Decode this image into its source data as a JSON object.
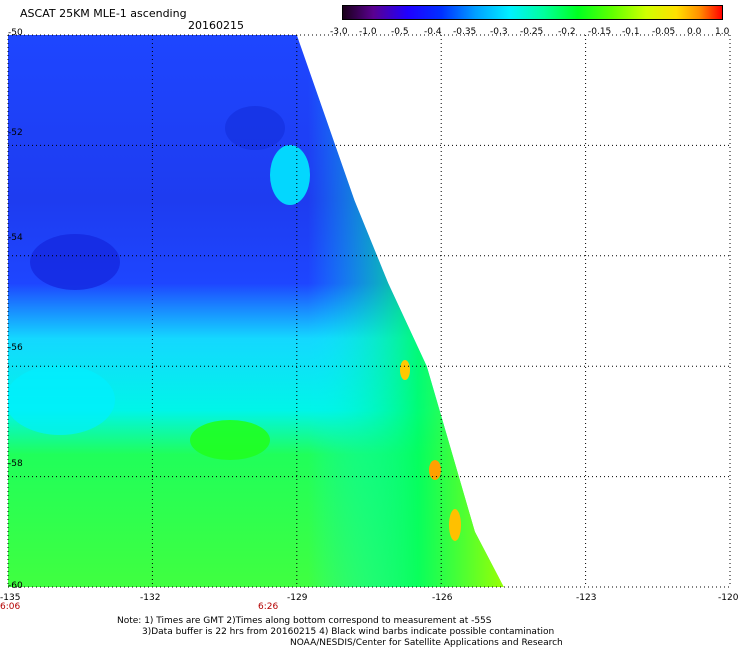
{
  "header": {
    "title": "ASCAT 25KM MLE-1 ascending",
    "date": "20160215"
  },
  "colorbar": {
    "labels": [
      "-3.0",
      "-1.0",
      "-0.5",
      "-0.4",
      "-0.35",
      "-0.3",
      "-0.25",
      "-0.2",
      "-0.15",
      "-0.1",
      "-0.05",
      "0.0",
      "1.0"
    ],
    "colors": [
      "#1a001a",
      "#6a00b0",
      "#0000ff",
      "#0050ff",
      "#00a0ff",
      "#00e8ff",
      "#00ff9c",
      "#00ff00",
      "#8cff00",
      "#e0ff00",
      "#ffe000",
      "#ff8c00",
      "#ff0000"
    ]
  },
  "axes": {
    "lat_labels": [
      "-50",
      "-52",
      "-54",
      "-56",
      "-58",
      "-60"
    ],
    "lon_labels": [
      "-135",
      "-132",
      "-129",
      "-126",
      "-123",
      "-120"
    ],
    "time_labels": [
      "6:06",
      "6:26"
    ]
  },
  "map": {
    "lon_range": [
      -135,
      -120
    ],
    "lat_range": [
      -60,
      -50
    ],
    "swath_east_edge": [
      {
        "lat": -50.0,
        "lon": -129.0
      },
      {
        "lat": -51.5,
        "lon": -128.4
      },
      {
        "lat": -53.0,
        "lon": -127.8
      },
      {
        "lat": -54.5,
        "lon": -127.1
      },
      {
        "lat": -56.0,
        "lon": -126.3
      },
      {
        "lat": -57.5,
        "lon": -125.8
      },
      {
        "lat": -59.0,
        "lon": -125.3
      },
      {
        "lat": -60.0,
        "lon": -124.7
      }
    ]
  },
  "notes": {
    "line1": "Note: 1) Times are GMT 2)Times along bottom correspond to measurement at -55S",
    "line2": "3)Data buffer is 22 hrs from 20160215 4) Black wind barbs indicate possible contamination",
    "line3": "NOAA/NESDIS/Center for Satellite Applications and Research"
  }
}
